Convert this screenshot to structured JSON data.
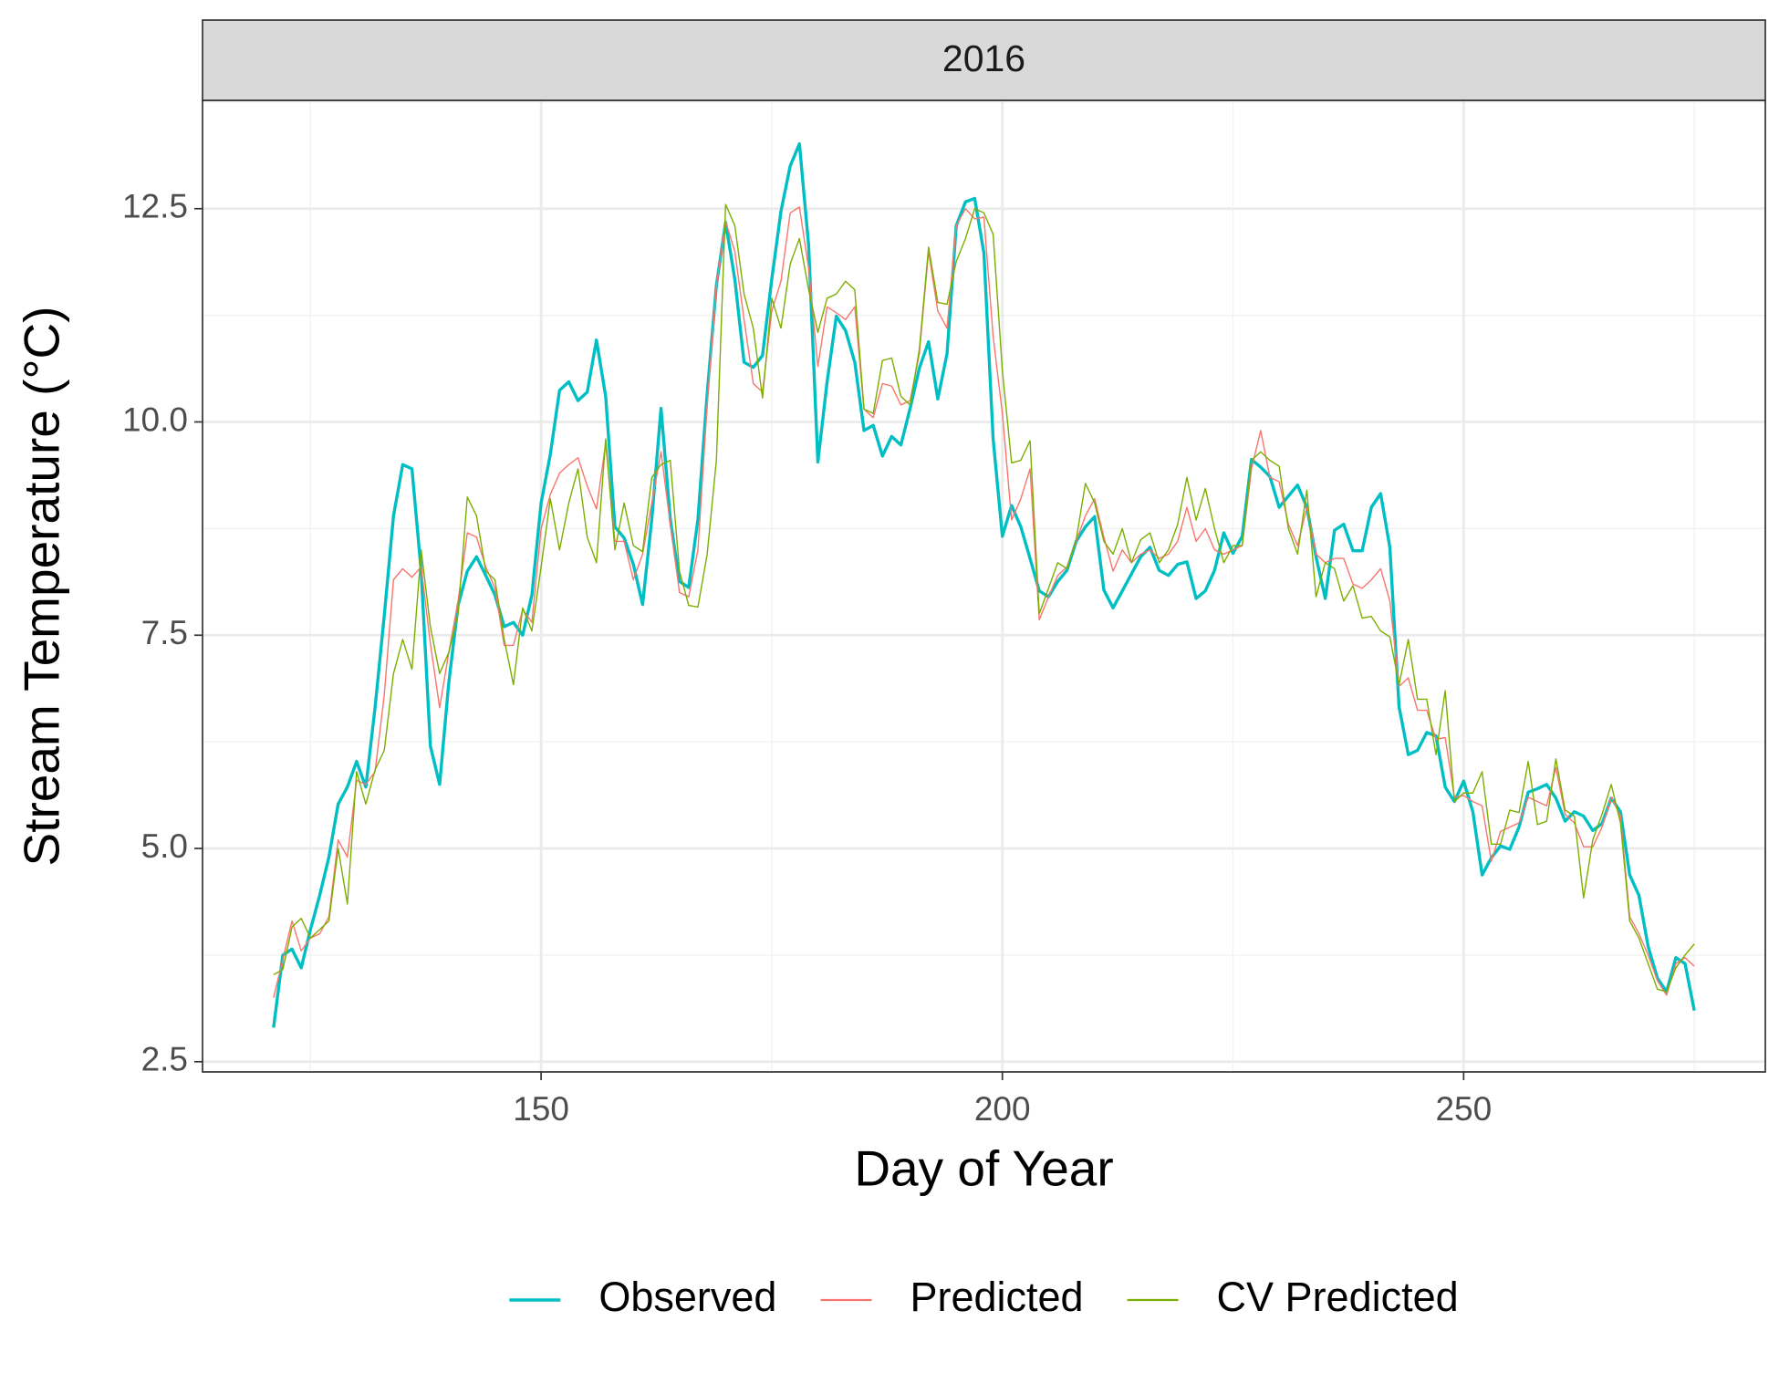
{
  "chart_data": {
    "type": "line",
    "panel": "2016",
    "x_label": "Day of Year",
    "y_label": "Stream Temperature (°C)",
    "xlim": [
      113.3,
      282.7
    ],
    "ylim": [
      2.38,
      13.77
    ],
    "xticks": [
      150,
      200,
      250
    ],
    "yticks": [
      2.5,
      {
        "value": 5,
        "label": "5.0"
      },
      7.5,
      {
        "value": 10,
        "label": "10.0"
      },
      12.5
    ],
    "grid": true,
    "legend": "bottom",
    "x": [
      121,
      122,
      123,
      124,
      125,
      126,
      127,
      128,
      129,
      130,
      131,
      132,
      133,
      134,
      135,
      136,
      137,
      138,
      139,
      140,
      141,
      142,
      143,
      144,
      145,
      146,
      147,
      148,
      149,
      150,
      151,
      152,
      153,
      154,
      155,
      156,
      157,
      158,
      159,
      160,
      161,
      162,
      163,
      164,
      165,
      166,
      167,
      168,
      169,
      170,
      171,
      172,
      173,
      174,
      175,
      176,
      177,
      178,
      179,
      180,
      181,
      182,
      183,
      184,
      185,
      186,
      187,
      188,
      189,
      190,
      191,
      192,
      193,
      194,
      195,
      196,
      197,
      198,
      199,
      200,
      201,
      202,
      203,
      204,
      205,
      206,
      207,
      208,
      209,
      210,
      211,
      212,
      213,
      214,
      215,
      216,
      217,
      218,
      219,
      220,
      221,
      222,
      223,
      224,
      225,
      226,
      227,
      228,
      229,
      230,
      231,
      232,
      233,
      234,
      235,
      236,
      237,
      238,
      239,
      240,
      241,
      242,
      243,
      244,
      245,
      246,
      247,
      248,
      249,
      250,
      251,
      252,
      253,
      254,
      255,
      256,
      257,
      258,
      259,
      260,
      261,
      262,
      263,
      264,
      265,
      266,
      267,
      268,
      269,
      270,
      271,
      272,
      273,
      274,
      275
    ],
    "series": [
      {
        "name": "Observed",
        "color": "#00BFC4",
        "width": 3.4,
        "values": [
          2.9,
          3.75,
          3.82,
          3.6,
          4.05,
          4.45,
          4.9,
          5.52,
          5.72,
          6.02,
          5.72,
          6.65,
          7.73,
          8.9,
          9.5,
          9.45,
          8.25,
          6.2,
          5.75,
          6.95,
          7.85,
          8.25,
          8.42,
          8.2,
          7.97,
          7.6,
          7.65,
          7.5,
          7.97,
          9.05,
          9.62,
          10.37,
          10.47,
          10.25,
          10.35,
          10.96,
          10.3,
          8.77,
          8.64,
          8.33,
          7.86,
          8.86,
          10.16,
          8.86,
          8.13,
          8.06,
          8.86,
          10.33,
          11.6,
          12.34,
          11.67,
          10.7,
          10.64,
          10.78,
          11.67,
          12.47,
          13.0,
          13.26,
          12.07,
          9.53,
          10.47,
          11.24,
          11.07,
          10.7,
          9.9,
          9.96,
          9.6,
          9.83,
          9.73,
          10.16,
          10.63,
          10.94,
          10.27,
          10.8,
          12.3,
          12.58,
          12.62,
          11.98,
          9.8,
          8.66,
          9.02,
          8.77,
          8.4,
          8.02,
          7.95,
          8.13,
          8.26,
          8.6,
          8.77,
          8.89,
          8.03,
          7.82,
          8.02,
          8.22,
          8.42,
          8.53,
          8.26,
          8.2,
          8.33,
          8.36,
          7.93,
          8.02,
          8.26,
          8.7,
          8.46,
          8.66,
          9.56,
          9.47,
          9.36,
          9.0,
          9.13,
          9.26,
          9.0,
          8.42,
          7.93,
          8.73,
          8.8,
          8.49,
          8.49,
          9.0,
          9.16,
          8.53,
          6.66,
          6.1,
          6.15,
          6.36,
          6.32,
          5.72,
          5.55,
          5.79,
          5.43,
          4.69,
          4.89,
          5.03,
          4.99,
          5.25,
          5.66,
          5.7,
          5.75,
          5.59,
          5.32,
          5.43,
          5.38,
          5.21,
          5.29,
          5.59,
          5.43,
          4.69,
          4.45,
          3.85,
          3.48,
          3.32,
          3.72,
          3.65,
          3.1
        ]
      },
      {
        "name": "Predicted",
        "color": "#F8766D",
        "width": 1.4,
        "values": [
          3.25,
          3.7,
          4.15,
          3.8,
          3.95,
          4.0,
          4.2,
          5.1,
          4.9,
          5.8,
          5.75,
          5.9,
          6.8,
          8.15,
          8.28,
          8.18,
          8.3,
          7.4,
          6.65,
          7.3,
          7.9,
          8.7,
          8.65,
          8.3,
          8.05,
          7.38,
          7.38,
          7.8,
          7.65,
          8.75,
          9.15,
          9.4,
          9.5,
          9.58,
          9.25,
          8.98,
          9.75,
          8.6,
          8.6,
          8.15,
          8.45,
          9.05,
          9.65,
          8.8,
          8.0,
          7.95,
          8.5,
          10.2,
          11.6,
          12.35,
          12.0,
          11.2,
          10.45,
          10.35,
          11.3,
          11.65,
          12.45,
          12.52,
          11.8,
          10.65,
          11.35,
          11.28,
          11.2,
          11.35,
          10.15,
          10.05,
          10.45,
          10.42,
          10.2,
          10.25,
          10.8,
          12.0,
          11.3,
          11.1,
          12.3,
          12.5,
          12.38,
          12.4,
          11.0,
          10.1,
          8.85,
          9.1,
          9.45,
          7.68,
          7.95,
          8.2,
          8.3,
          8.6,
          8.9,
          9.1,
          8.65,
          8.25,
          8.5,
          8.35,
          8.45,
          8.5,
          8.4,
          8.45,
          8.6,
          9.0,
          8.6,
          8.75,
          8.5,
          8.45,
          8.5,
          8.55,
          9.45,
          9.9,
          9.35,
          9.3,
          8.8,
          8.55,
          9.0,
          8.45,
          8.35,
          8.4,
          8.4,
          8.1,
          8.05,
          8.15,
          8.28,
          7.9,
          6.9,
          7.0,
          6.62,
          6.62,
          6.28,
          6.3,
          5.6,
          5.62,
          5.55,
          5.5,
          4.85,
          5.2,
          5.25,
          5.3,
          5.6,
          5.55,
          5.5,
          5.95,
          5.4,
          5.3,
          5.02,
          5.02,
          5.25,
          5.6,
          5.38,
          4.2,
          4.0,
          3.75,
          3.45,
          3.28,
          3.65,
          3.72,
          3.62
        ]
      },
      {
        "name": "CV Predicted",
        "color": "#7CAE00",
        "width": 1.4,
        "values": [
          3.52,
          3.58,
          4.08,
          4.18,
          3.95,
          4.05,
          4.15,
          5.0,
          4.35,
          5.9,
          5.52,
          5.92,
          6.15,
          7.05,
          7.45,
          7.1,
          8.5,
          7.6,
          7.05,
          7.3,
          7.75,
          9.12,
          8.9,
          8.25,
          8.15,
          7.45,
          6.92,
          7.82,
          7.55,
          8.3,
          9.1,
          8.5,
          9.05,
          9.45,
          8.65,
          8.35,
          9.8,
          8.5,
          9.05,
          8.55,
          8.48,
          9.35,
          9.5,
          9.55,
          8.25,
          7.85,
          7.83,
          8.45,
          9.55,
          12.55,
          12.3,
          11.5,
          11.1,
          10.28,
          11.45,
          11.1,
          11.85,
          12.15,
          11.55,
          11.05,
          11.45,
          11.5,
          11.65,
          11.55,
          10.15,
          10.1,
          10.72,
          10.75,
          10.3,
          10.2,
          10.85,
          12.05,
          11.4,
          11.38,
          11.88,
          12.15,
          12.5,
          12.45,
          12.2,
          10.6,
          9.52,
          9.55,
          9.78,
          7.75,
          8.05,
          8.35,
          8.28,
          8.62,
          9.28,
          9.05,
          8.6,
          8.45,
          8.75,
          8.35,
          8.62,
          8.7,
          8.35,
          8.5,
          8.8,
          9.35,
          8.85,
          9.22,
          8.75,
          8.35,
          8.55,
          8.55,
          9.55,
          9.65,
          9.55,
          9.48,
          8.75,
          8.45,
          9.2,
          7.95,
          8.35,
          8.28,
          7.9,
          8.08,
          7.7,
          7.72,
          7.55,
          7.48,
          6.92,
          7.45,
          6.75,
          6.75,
          6.1,
          6.85,
          5.55,
          5.65,
          5.65,
          5.9,
          5.05,
          5.05,
          5.45,
          5.42,
          6.02,
          5.28,
          5.32,
          6.05,
          5.45,
          5.38,
          4.42,
          5.1,
          5.4,
          5.75,
          5.3,
          4.15,
          3.95,
          3.65,
          3.35,
          3.32,
          3.6,
          3.75,
          3.88
        ]
      }
    ]
  }
}
